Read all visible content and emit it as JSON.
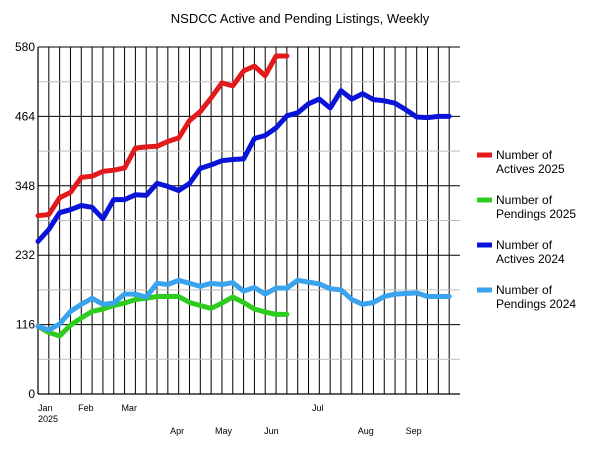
{
  "chart_data": {
    "type": "line",
    "title": "NSDCC Active and Pending Listings, Weekly",
    "xlabel": "",
    "ylabel": "",
    "ylim": [
      0,
      580
    ],
    "y_ticks": [
      "0",
      "116",
      "232",
      "348",
      "464",
      "580"
    ],
    "x_range": [
      "2025-01-01",
      "2025-10-01"
    ],
    "x_month_labels": [
      {
        "date": "2025-01-01",
        "label": "Jan"
      },
      {
        "date": "2025-02-01",
        "label": "Feb"
      },
      {
        "date": "2025-03-01",
        "label": "Mar"
      },
      {
        "date": "2025-04-01",
        "label": "Apr"
      },
      {
        "date": "2025-05-01",
        "label": "May"
      },
      {
        "date": "2025-06-01",
        "label": "Jun"
      },
      {
        "date": "2025-07-01",
        "label": "Jul"
      },
      {
        "date": "2025-08-01",
        "label": "Aug"
      },
      {
        "date": "2025-09-01",
        "label": "Sep"
      }
    ],
    "x_year_label": "2025",
    "grid": true,
    "legend_position": "right",
    "series": [
      {
        "name": "Number of Actives 2025",
        "color": "#e31a1c",
        "x": [
          "2025-01-01",
          "2025-01-08",
          "2025-01-15",
          "2025-01-22",
          "2025-01-29",
          "2025-02-05",
          "2025-02-12",
          "2025-02-19",
          "2025-02-26",
          "2025-03-05",
          "2025-03-12",
          "2025-03-19",
          "2025-03-26",
          "2025-04-02",
          "2025-04-09",
          "2025-04-16",
          "2025-04-23",
          "2025-04-30",
          "2025-05-07",
          "2025-05-14",
          "2025-05-21",
          "2025-05-28",
          "2025-06-04",
          "2025-06-11"
        ],
        "values": [
          298,
          300,
          328,
          337,
          362,
          364,
          372,
          374,
          378,
          411,
          413,
          414,
          422,
          428,
          457,
          472,
          495,
          520,
          515,
          540,
          548,
          532,
          565,
          565
        ]
      },
      {
        "name": "Number of Pendings 2025",
        "color": "#2ecc1f",
        "x": [
          "2025-01-01",
          "2025-01-08",
          "2025-01-15",
          "2025-01-22",
          "2025-01-29",
          "2025-02-05",
          "2025-02-12",
          "2025-02-19",
          "2025-02-26",
          "2025-03-05",
          "2025-03-12",
          "2025-03-19",
          "2025-03-26",
          "2025-04-02",
          "2025-04-09",
          "2025-04-16",
          "2025-04-23",
          "2025-04-30",
          "2025-05-07",
          "2025-05-14",
          "2025-05-21",
          "2025-05-28",
          "2025-06-04",
          "2025-06-11"
        ],
        "values": [
          113,
          103,
          97,
          115,
          127,
          138,
          142,
          148,
          152,
          158,
          160,
          163,
          163,
          163,
          153,
          148,
          143,
          152,
          162,
          153,
          142,
          137,
          133,
          133
        ]
      },
      {
        "name": "Number of Actives 2024",
        "color": "#0a14d8",
        "x": [
          "2025-01-01",
          "2025-01-08",
          "2025-01-15",
          "2025-01-22",
          "2025-01-29",
          "2025-02-05",
          "2025-02-12",
          "2025-02-19",
          "2025-02-26",
          "2025-03-05",
          "2025-03-12",
          "2025-03-19",
          "2025-03-26",
          "2025-04-02",
          "2025-04-09",
          "2025-04-16",
          "2025-04-23",
          "2025-04-30",
          "2025-05-07",
          "2025-05-14",
          "2025-05-21",
          "2025-05-28",
          "2025-06-04",
          "2025-06-11",
          "2025-06-18",
          "2025-06-25",
          "2025-07-02",
          "2025-07-09",
          "2025-07-16",
          "2025-07-23",
          "2025-07-30",
          "2025-08-06",
          "2025-08-13",
          "2025-08-20",
          "2025-08-27",
          "2025-09-03",
          "2025-09-10",
          "2025-09-17",
          "2025-09-24"
        ],
        "values": [
          255,
          275,
          303,
          308,
          315,
          312,
          293,
          325,
          325,
          333,
          332,
          352,
          347,
          340,
          352,
          377,
          383,
          390,
          392,
          393,
          427,
          432,
          445,
          465,
          470,
          485,
          493,
          478,
          507,
          493,
          502,
          492,
          490,
          486,
          475,
          463,
          462,
          464,
          464
        ]
      },
      {
        "name": "Number of Pendings 2024",
        "color": "#3aa3ee",
        "x": [
          "2025-01-01",
          "2025-01-08",
          "2025-01-15",
          "2025-01-22",
          "2025-01-29",
          "2025-02-05",
          "2025-02-12",
          "2025-02-19",
          "2025-02-26",
          "2025-03-05",
          "2025-03-12",
          "2025-03-19",
          "2025-03-26",
          "2025-04-02",
          "2025-04-09",
          "2025-04-16",
          "2025-04-23",
          "2025-04-30",
          "2025-05-07",
          "2025-05-14",
          "2025-05-21",
          "2025-05-28",
          "2025-06-04",
          "2025-06-11",
          "2025-06-18",
          "2025-06-25",
          "2025-07-02",
          "2025-07-09",
          "2025-07-16",
          "2025-07-23",
          "2025-07-30",
          "2025-08-06",
          "2025-08-13",
          "2025-08-20",
          "2025-08-27",
          "2025-09-03",
          "2025-09-10",
          "2025-09-17",
          "2025-09-24"
        ],
        "values": [
          113,
          107,
          117,
          138,
          150,
          160,
          150,
          152,
          167,
          167,
          162,
          185,
          183,
          190,
          185,
          180,
          185,
          183,
          186,
          172,
          178,
          167,
          177,
          177,
          190,
          187,
          184,
          176,
          174,
          158,
          150,
          153,
          163,
          167,
          168,
          169,
          163,
          163,
          163
        ]
      }
    ]
  }
}
